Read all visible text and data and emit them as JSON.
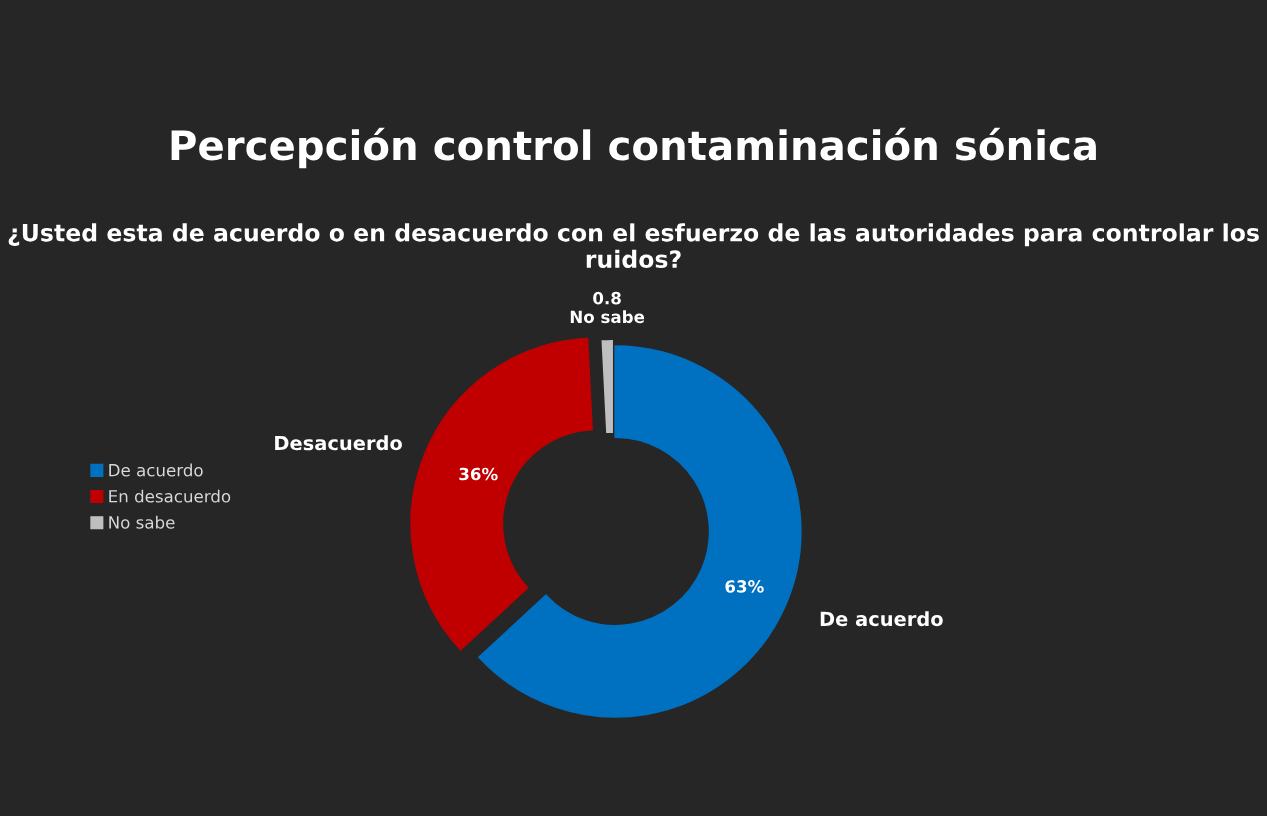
{
  "chart_data": {
    "type": "donut",
    "title": "Percepción control contaminación sónica",
    "subtitle": "¿Usted esta de acuerdo o en desacuerdo con el esfuerzo de las autoridades para controlar los ruidos?",
    "categories": [
      "De acuerdo",
      "En desacuerdo",
      "No sabe"
    ],
    "values": [
      63,
      36,
      0.8
    ],
    "colors": [
      "#0070c0",
      "#c00000",
      "#bfbfbf"
    ],
    "value_labels": [
      "63%",
      "36%",
      "0.8"
    ],
    "annotations": [
      "De acuerdo",
      "Desacuerdo",
      "No sabe"
    ],
    "legend": "left"
  }
}
